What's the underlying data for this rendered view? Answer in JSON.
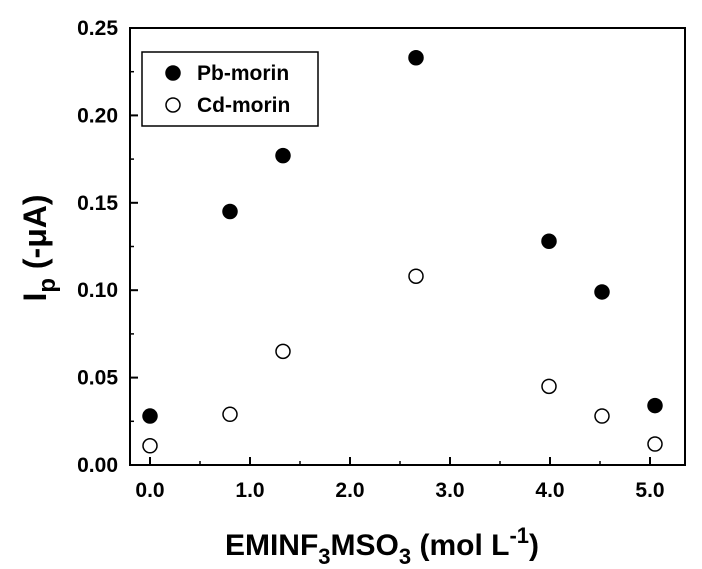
{
  "chart_data": {
    "type": "scatter",
    "title": "",
    "xlabel": {
      "main": "EMINF",
      "sub1": "3",
      "mid": "MSO",
      "sub2": "3",
      "units_open": " (mol L",
      "units_sup": "-1",
      "units_close": ")"
    },
    "ylabel": {
      "main": "I",
      "sub": "p",
      "rest": " (-μA)"
    },
    "xlim": [
      -0.2,
      5.35
    ],
    "ylim": [
      0.0,
      0.25
    ],
    "x_ticks": [
      0.0,
      1.0,
      2.0,
      3.0,
      4.0,
      5.0
    ],
    "x_tick_labels": [
      "0.0",
      "1.0",
      "2.0",
      "3.0",
      "4.0",
      "5.0"
    ],
    "y_ticks": [
      0.0,
      0.05,
      0.1,
      0.15,
      0.2,
      0.25
    ],
    "y_tick_labels": [
      "0.00",
      "0.05",
      "0.10",
      "0.15",
      "0.20",
      "0.25"
    ],
    "grid": false,
    "legend_position": "top-left",
    "series": [
      {
        "name": "Pb-morin",
        "marker": "filled-circle",
        "color": "#000000",
        "x": [
          0.0,
          0.8,
          1.33,
          2.66,
          3.99,
          4.52,
          5.05
        ],
        "y": [
          0.028,
          0.145,
          0.177,
          0.233,
          0.128,
          0.099,
          0.034
        ]
      },
      {
        "name": "Cd-morin",
        "marker": "open-circle",
        "color": "#000000",
        "x": [
          0.0,
          0.8,
          1.33,
          2.66,
          3.99,
          4.52,
          5.05
        ],
        "y": [
          0.011,
          0.029,
          0.065,
          0.108,
          0.045,
          0.028,
          0.012
        ]
      }
    ]
  }
}
